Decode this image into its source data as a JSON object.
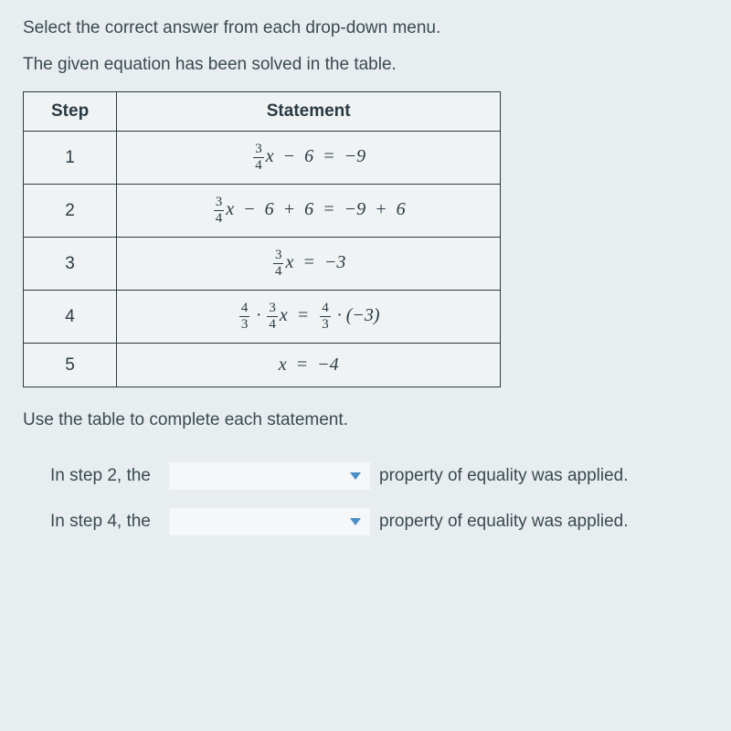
{
  "instruction": "Select the correct answer from each drop-down menu.",
  "description": "The given equation has been solved in the table.",
  "table": {
    "headers": {
      "step": "Step",
      "statement": "Statement"
    },
    "rows": [
      {
        "step": "1"
      },
      {
        "step": "2"
      },
      {
        "step": "3"
      },
      {
        "step": "4"
      },
      {
        "step": "5"
      }
    ]
  },
  "complete_text": "Use the table to complete each statement.",
  "fill_ins": [
    {
      "prefix": "In step 2, the",
      "suffix": "property of equality was applied."
    },
    {
      "prefix": "In step 4, the",
      "suffix": "property of equality was applied."
    }
  ],
  "colors": {
    "background": "#e8edef",
    "text": "#3a4a52",
    "border": "#2a3a42",
    "dropdown_arrow": "#4a8fc7",
    "table_bg": "#f0f3f4"
  },
  "fonts": {
    "body_size": 19,
    "math_family": "Times New Roman"
  }
}
